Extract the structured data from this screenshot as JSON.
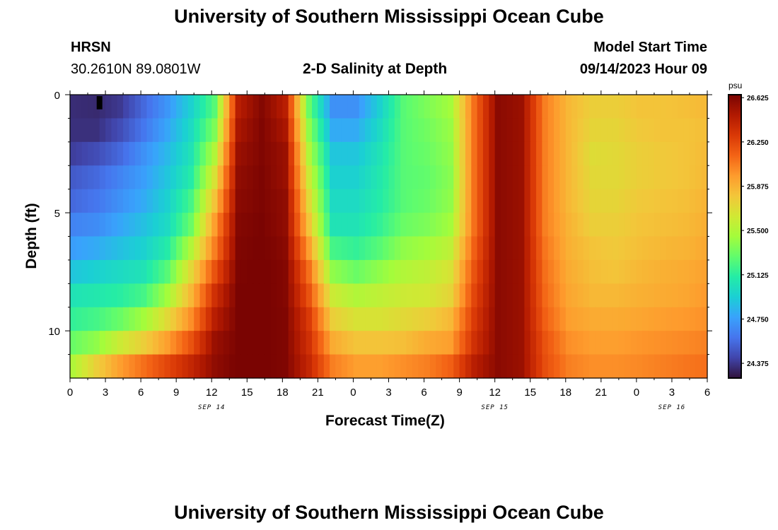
{
  "header": {
    "title": "University of Southern Mississippi Ocean Cube",
    "station": "HRSN",
    "coords": "30.2610N  89.0801W",
    "plot_title": "2-D Salinity at Depth",
    "model_start_label": "Model Start Time",
    "model_start_value": "09/14/2023 Hour 09"
  },
  "footer": {
    "title": "University of Southern Mississippi Ocean Cube"
  },
  "colorbar": {
    "unit": "psu",
    "ticks": [
      "26.625",
      "26.250",
      "25.875",
      "25.500",
      "25.125",
      "24.750",
      "24.375"
    ],
    "colors": [
      "#30123b",
      "#4145ab",
      "#4675ed",
      "#39a2fc",
      "#1bcfd4",
      "#24eca6",
      "#61fc6c",
      "#a4fc3b",
      "#d1e834",
      "#f3c63a",
      "#fe9b2d",
      "#f36315",
      "#d93806",
      "#b11901",
      "#7a0402"
    ]
  },
  "chart_data": {
    "type": "heatmap",
    "title": "2-D Salinity at Depth",
    "xlabel": "Forecast Time(Z)",
    "ylabel": "Depth (ft)",
    "x_ticks": [
      "0",
      "3",
      "6",
      "9",
      "12",
      "15",
      "18",
      "21",
      "0",
      "3",
      "6",
      "9",
      "12",
      "15",
      "18",
      "21",
      "0",
      "3",
      "6"
    ],
    "date_labels": [
      {
        "text": "SEP 14",
        "hour": 12
      },
      {
        "text": "SEP 15",
        "hour": 36
      },
      {
        "text": "SEP 16",
        "hour": 51
      }
    ],
    "y_ticks": [
      {
        "label": "0",
        "depth": 0
      },
      {
        "label": "5",
        "depth": 5
      },
      {
        "label": "10",
        "depth": 10
      }
    ],
    "xlim_hours": [
      0,
      54
    ],
    "ylim_depth_ft": [
      0,
      12
    ],
    "value_range": [
      24.25,
      26.65
    ],
    "unit": "psu",
    "depth_levels_ft": [
      0.5,
      1.5,
      2.5,
      3.5,
      4.5,
      5.5,
      6.5,
      7.5,
      8.5,
      9.5,
      10.5,
      11.5
    ],
    "time_hours": [
      0,
      2,
      4,
      6,
      8,
      10,
      12,
      14,
      16,
      18,
      20,
      22,
      24,
      26,
      28,
      30,
      32,
      34,
      36,
      38,
      40,
      42,
      44,
      46,
      48,
      50,
      52,
      54
    ],
    "values": [
      [
        24.34,
        24.33,
        24.38,
        24.55,
        24.72,
        24.95,
        25.25,
        26.45,
        26.62,
        26.45,
        25.3,
        24.7,
        24.7,
        24.95,
        25.25,
        25.35,
        25.45,
        26.1,
        26.6,
        26.55,
        26.05,
        25.85,
        25.75,
        25.75,
        25.8,
        25.8,
        25.82,
        25.85
      ],
      [
        24.35,
        24.35,
        24.45,
        24.6,
        24.78,
        25.0,
        25.35,
        26.5,
        26.63,
        26.5,
        25.4,
        24.8,
        24.8,
        25.0,
        25.25,
        25.32,
        25.42,
        26.1,
        26.6,
        26.55,
        26.05,
        25.85,
        25.72,
        25.72,
        25.78,
        25.8,
        25.8,
        25.83
      ],
      [
        24.4,
        24.45,
        24.55,
        24.7,
        24.85,
        25.05,
        25.5,
        26.55,
        26.63,
        26.55,
        25.5,
        24.9,
        24.9,
        25.05,
        25.25,
        25.3,
        25.4,
        26.1,
        26.6,
        26.55,
        26.05,
        25.85,
        25.68,
        25.7,
        25.75,
        25.78,
        25.8,
        25.85
      ],
      [
        24.5,
        24.55,
        24.65,
        24.75,
        24.9,
        25.1,
        25.65,
        26.58,
        26.64,
        26.55,
        25.6,
        24.95,
        24.95,
        25.08,
        25.25,
        25.28,
        25.38,
        26.1,
        26.6,
        26.55,
        26.05,
        25.85,
        25.7,
        25.7,
        25.75,
        25.78,
        25.8,
        25.86
      ],
      [
        24.55,
        24.6,
        24.7,
        24.8,
        24.95,
        25.2,
        25.8,
        26.6,
        26.64,
        26.58,
        25.7,
        25.0,
        25.0,
        25.1,
        25.25,
        25.3,
        25.4,
        26.1,
        26.6,
        26.55,
        26.05,
        25.85,
        25.72,
        25.72,
        25.78,
        25.8,
        25.82,
        25.88
      ],
      [
        24.65,
        24.68,
        24.78,
        24.88,
        25.0,
        25.3,
        25.95,
        26.62,
        26.65,
        26.58,
        25.8,
        25.05,
        25.05,
        25.15,
        25.3,
        25.35,
        25.45,
        26.1,
        26.6,
        26.55,
        26.05,
        25.87,
        25.75,
        25.75,
        25.8,
        25.82,
        25.84,
        25.9
      ],
      [
        24.75,
        24.8,
        24.88,
        24.95,
        25.1,
        25.5,
        26.05,
        26.63,
        26.66,
        26.6,
        25.95,
        25.2,
        25.15,
        25.25,
        25.4,
        25.45,
        25.55,
        26.15,
        26.6,
        26.55,
        26.08,
        25.88,
        25.8,
        25.78,
        25.82,
        25.85,
        25.87,
        25.92
      ],
      [
        24.9,
        24.95,
        25.0,
        25.05,
        25.25,
        25.7,
        26.2,
        26.64,
        26.66,
        26.62,
        26.1,
        25.4,
        25.3,
        25.4,
        25.5,
        25.55,
        25.65,
        26.2,
        26.6,
        26.55,
        26.1,
        25.9,
        25.82,
        25.8,
        25.85,
        25.88,
        25.9,
        25.95
      ],
      [
        25.05,
        25.08,
        25.12,
        25.2,
        25.45,
        25.85,
        26.35,
        26.65,
        26.66,
        26.62,
        26.2,
        25.6,
        25.5,
        25.55,
        25.6,
        25.62,
        25.72,
        26.25,
        26.6,
        26.55,
        26.12,
        25.92,
        25.85,
        25.85,
        25.88,
        25.9,
        25.92,
        25.98
      ],
      [
        25.15,
        25.2,
        25.3,
        25.45,
        25.7,
        26.0,
        26.45,
        26.65,
        26.66,
        26.63,
        26.3,
        25.75,
        25.65,
        25.65,
        25.7,
        25.75,
        25.85,
        26.3,
        26.6,
        26.55,
        26.15,
        25.95,
        25.9,
        25.9,
        25.92,
        25.95,
        25.97,
        26.0
      ],
      [
        25.3,
        25.4,
        25.6,
        25.75,
        25.95,
        26.2,
        26.55,
        26.65,
        26.66,
        26.63,
        26.35,
        25.9,
        25.8,
        25.8,
        25.82,
        25.9,
        25.95,
        26.35,
        26.6,
        26.55,
        26.2,
        26.0,
        25.95,
        25.95,
        25.98,
        26.0,
        26.02,
        26.05
      ],
      [
        25.5,
        25.75,
        25.95,
        26.1,
        26.25,
        26.4,
        26.58,
        26.66,
        26.66,
        26.63,
        26.4,
        26.05,
        25.95,
        25.95,
        26.0,
        26.05,
        26.15,
        26.45,
        26.6,
        26.55,
        26.22,
        26.05,
        26.0,
        26.0,
        26.02,
        26.05,
        26.08,
        26.1
      ]
    ],
    "marker": {
      "hour": 2.5,
      "depth_from": 0.0,
      "depth_to": 0.5
    }
  },
  "axis_labels": {
    "x": "Forecast Time(Z)",
    "y": "Depth (ft)"
  }
}
